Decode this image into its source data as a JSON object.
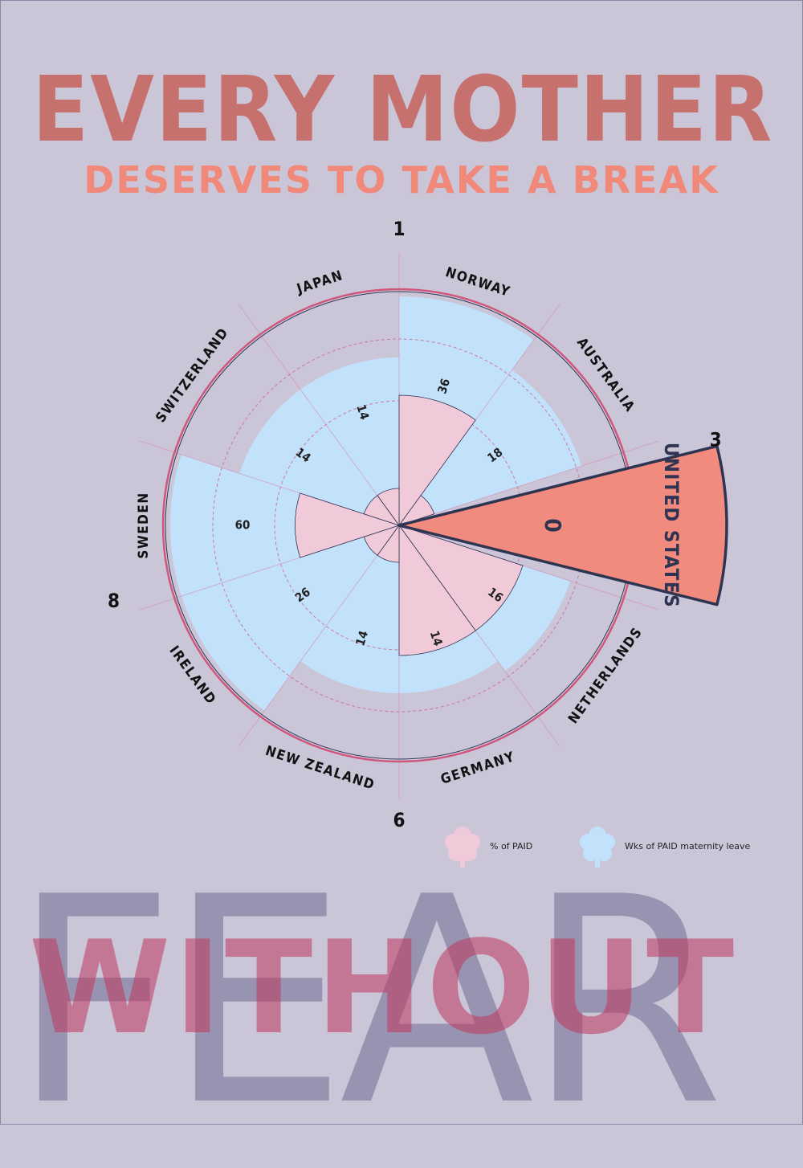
{
  "title": "EVERY MOTHER",
  "subtitle": "DESERVES TO TAKE A BREAK",
  "colors": {
    "background": "#cac6d8",
    "title": "#c7716e",
    "subtitle": "#f0897a",
    "weeks_fill": "#c2e2fb",
    "percent_fill": "#f0cad8",
    "highlight_fill": "#f08b7d",
    "highlight_stroke": "#2f3453",
    "outer_ring": "#d0567c"
  },
  "chart_data": {
    "type": "polar-area",
    "categories": [
      "NORWAY",
      "AUSTRALIA",
      "UNITED STATES",
      "NETHERLANDS",
      "GERMANY",
      "NEW ZEALAND",
      "IRELAND",
      "SWEDEN",
      "SWITZERLAND",
      "JAPAN"
    ],
    "series": [
      {
        "name": "Wks of PAID maternity leave",
        "values": [
          36,
          18,
          0,
          16,
          14,
          14,
          26,
          60,
          14,
          14
        ]
      },
      {
        "name": "% of PAID",
        "values": [
          100,
          0,
          0,
          100,
          100,
          0,
          0,
          80,
          0,
          0
        ]
      }
    ],
    "highlight": "UNITED STATES",
    "ring_numbers": [
      "1",
      "3",
      "6",
      "8"
    ]
  },
  "legend": {
    "percent_label": "% of PAID",
    "weeks_label": "Wks of PAID maternity leave",
    "percent_icon": "flower-icon",
    "weeks_icon": "flower-icon"
  },
  "bottom": {
    "word_back": "FEAR",
    "word_front": "WITHOUT"
  }
}
